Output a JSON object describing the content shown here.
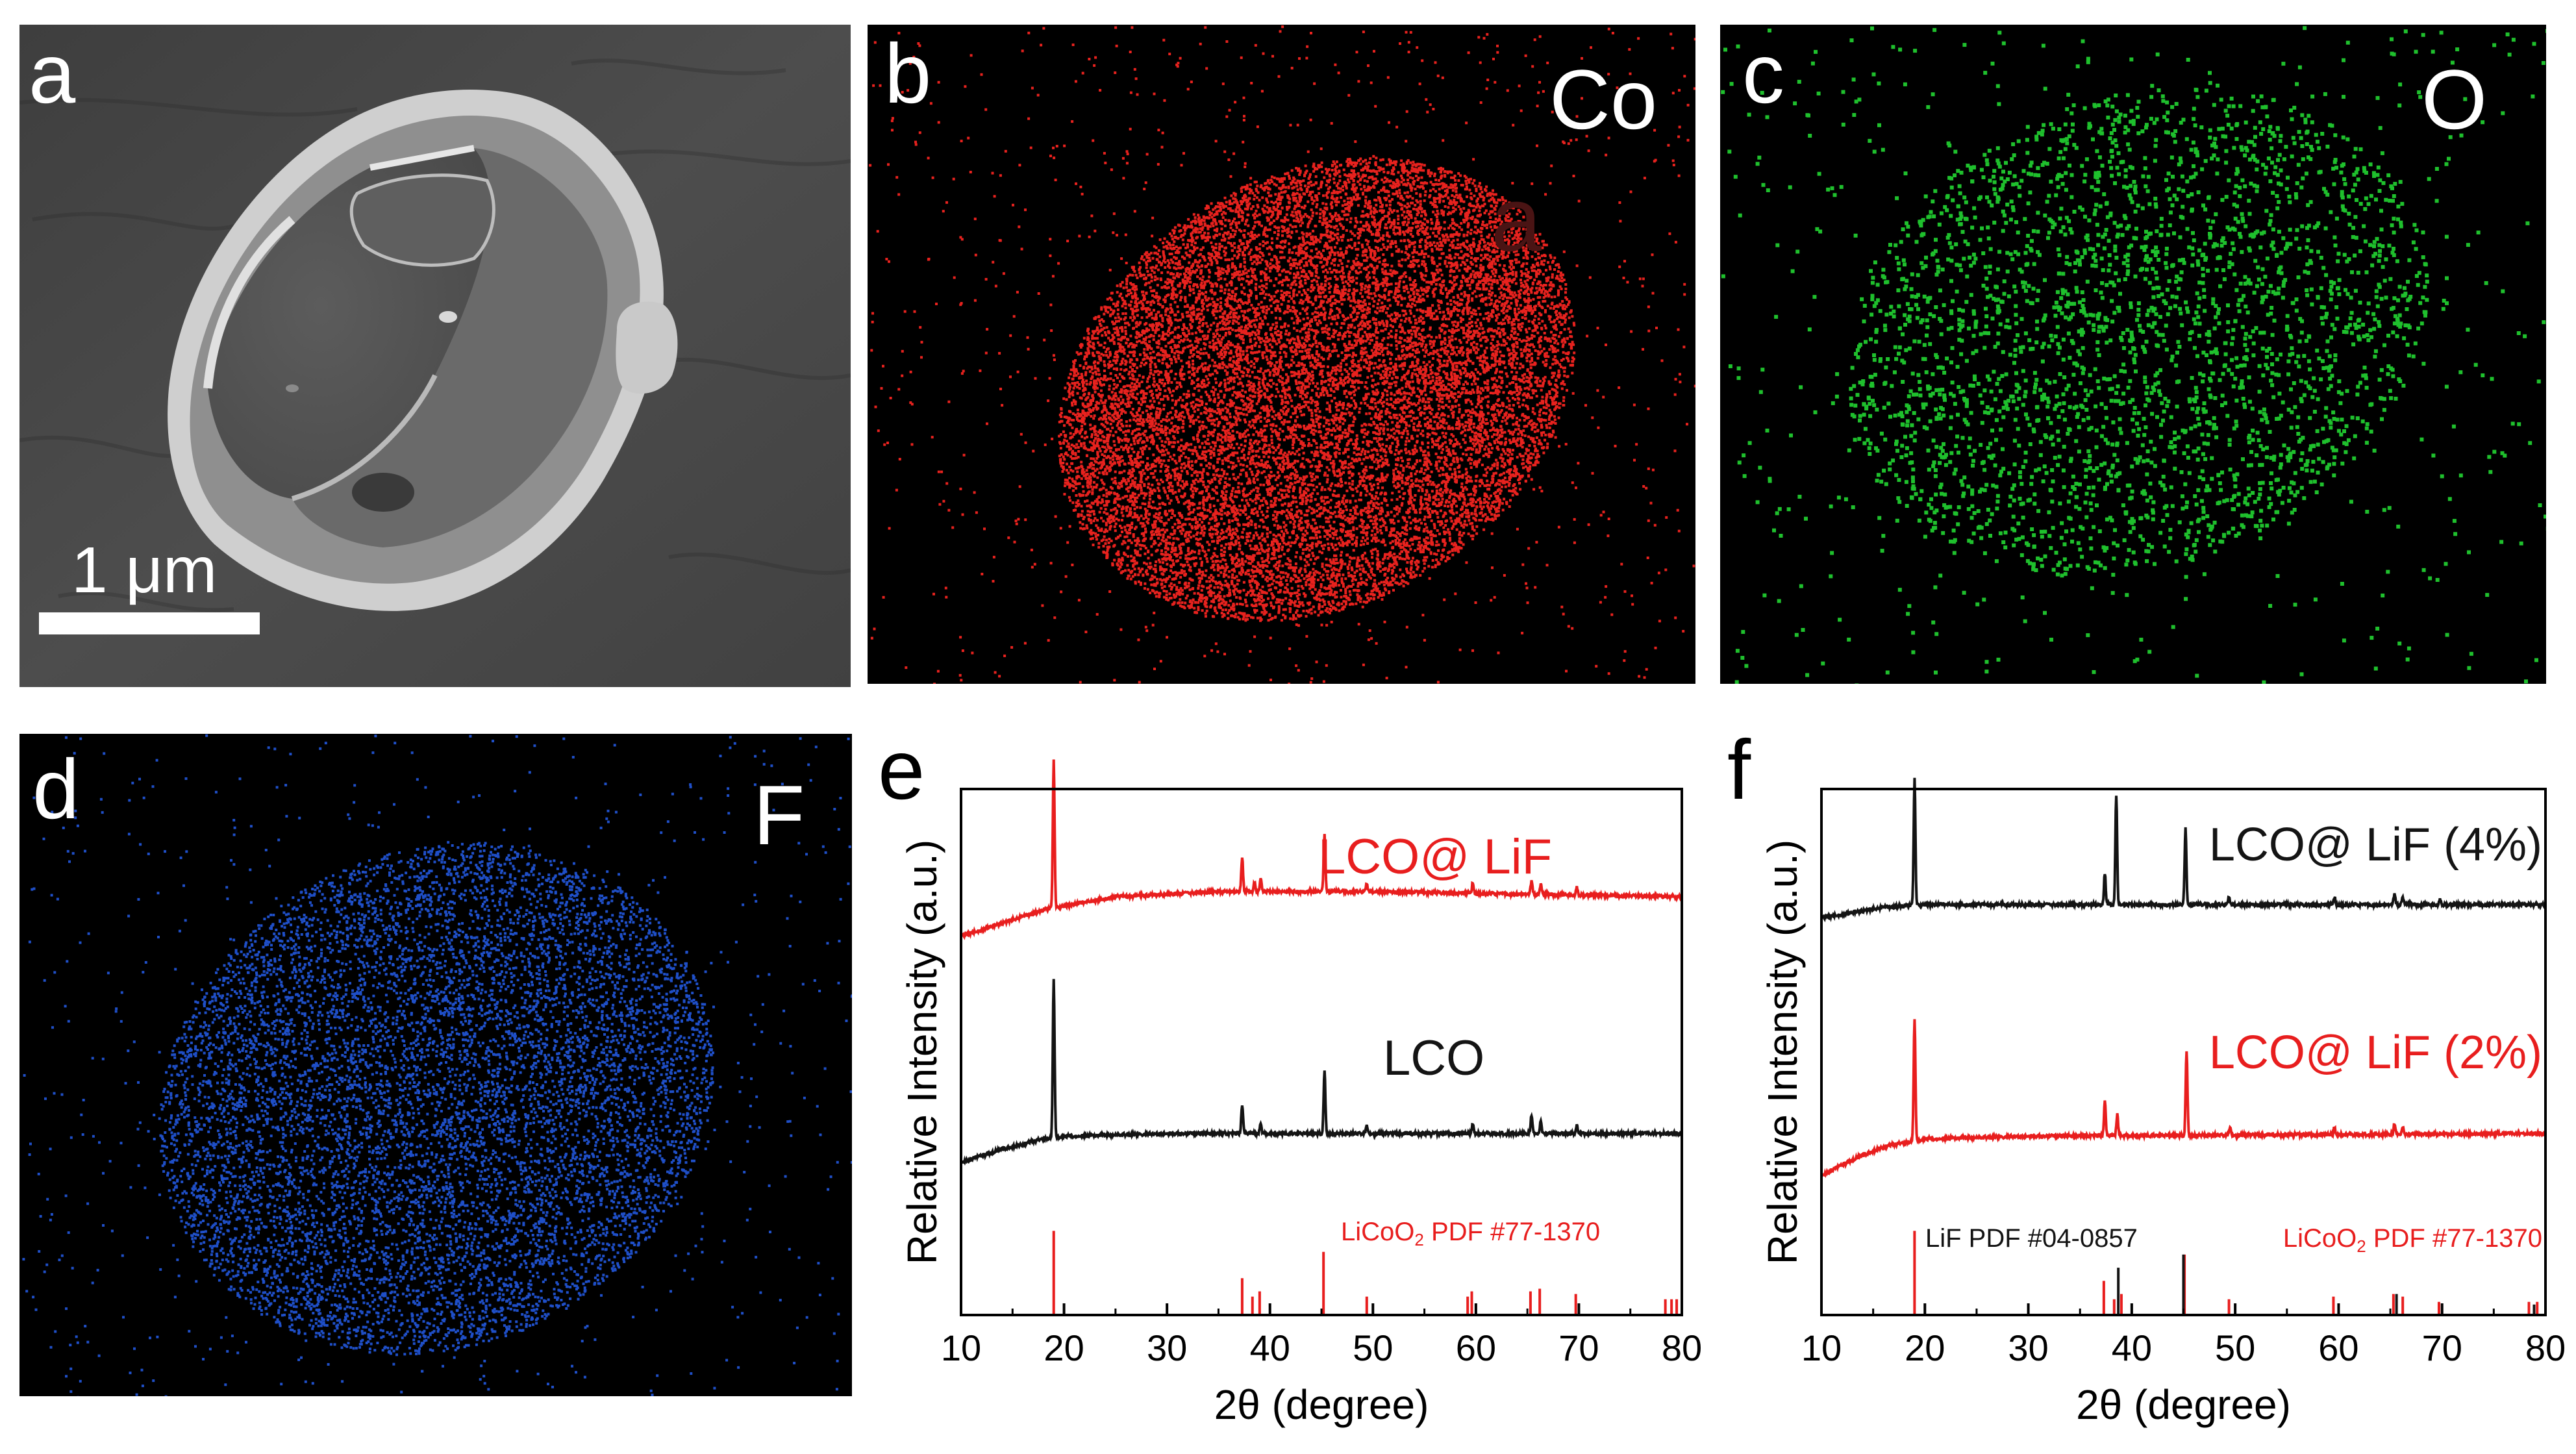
{
  "panels": {
    "a": {
      "letter": "a",
      "scalebar": "1 μm"
    },
    "b": {
      "letter": "b",
      "element": "Co",
      "dot_color": "#e8221e",
      "ghost_letter": "a"
    },
    "c": {
      "letter": "c",
      "element": "O",
      "dot_color": "#1fc02d"
    },
    "d": {
      "letter": "d",
      "element": "F",
      "dot_color": "#1f4fc8"
    }
  },
  "colors": {
    "black_series": "#141414",
    "red_series": "#e81e1e",
    "axis": "#000000"
  },
  "chart_data": [
    {
      "panel": "e",
      "type": "line",
      "xlabel": "2θ (degree)",
      "ylabel": "Relative Intensity (a.u.)",
      "xlim": [
        10,
        80
      ],
      "xticks": [
        10,
        20,
        30,
        40,
        50,
        60,
        70,
        80
      ],
      "series": [
        {
          "name": "LCO@ LiF",
          "color": "#e81e1e",
          "baseline": [
            [
              10,
              0.72
            ],
            [
              14,
              0.745
            ],
            [
              18,
              0.77
            ],
            [
              25,
              0.795
            ],
            [
              35,
              0.805
            ],
            [
              50,
              0.805
            ],
            [
              65,
              0.8
            ],
            [
              80,
              0.795
            ]
          ],
          "peaks": [
            [
              19.0,
              0.28
            ],
            [
              37.3,
              0.065
            ],
            [
              38.5,
              0.018
            ],
            [
              39.1,
              0.025
            ],
            [
              45.3,
              0.11
            ],
            [
              49.4,
              0.015
            ],
            [
              59.7,
              0.02
            ],
            [
              65.4,
              0.025
            ],
            [
              66.3,
              0.02
            ],
            [
              69.8,
              0.015
            ]
          ]
        },
        {
          "name": "LCO",
          "color": "#141414",
          "baseline": [
            [
              10,
              0.29
            ],
            [
              14,
              0.315
            ],
            [
              18,
              0.335
            ],
            [
              20,
              0.34
            ],
            [
              30,
              0.345
            ],
            [
              50,
              0.345
            ],
            [
              80,
              0.345
            ]
          ],
          "peaks": [
            [
              19.0,
              0.3
            ],
            [
              37.3,
              0.055
            ],
            [
              39.1,
              0.02
            ],
            [
              45.3,
              0.12
            ],
            [
              49.4,
              0.015
            ],
            [
              59.7,
              0.02
            ],
            [
              65.4,
              0.035
            ],
            [
              66.3,
              0.025
            ],
            [
              69.8,
              0.015
            ]
          ]
        }
      ],
      "reference": {
        "label_main": "LiCoO",
        "label_sub": "2",
        "label_rest": " PDF #77-1370",
        "color": "#e81e1e",
        "lines": [
          [
            19.0,
            0.16
          ],
          [
            37.3,
            0.07
          ],
          [
            38.3,
            0.035
          ],
          [
            39.0,
            0.045
          ],
          [
            45.2,
            0.12
          ],
          [
            49.4,
            0.035
          ],
          [
            59.2,
            0.035
          ],
          [
            59.6,
            0.045
          ],
          [
            65.3,
            0.045
          ],
          [
            66.2,
            0.05
          ],
          [
            69.7,
            0.04
          ],
          [
            78.4,
            0.03
          ],
          [
            79.0,
            0.03
          ],
          [
            79.5,
            0.03
          ]
        ]
      }
    },
    {
      "panel": "f",
      "type": "line",
      "xlabel": "2θ (degree)",
      "ylabel": "Relative Intensity (a.u.)",
      "xlim": [
        10,
        80
      ],
      "xticks": [
        10,
        20,
        30,
        40,
        50,
        60,
        70,
        80
      ],
      "series": [
        {
          "name": "LCO@ LiF (4%)",
          "color": "#141414",
          "baseline": [
            [
              10,
              0.755
            ],
            [
              13,
              0.765
            ],
            [
              16,
              0.775
            ],
            [
              20,
              0.78
            ],
            [
              40,
              0.78
            ],
            [
              80,
              0.78
            ]
          ],
          "peaks": [
            [
              19.0,
              0.24
            ],
            [
              37.4,
              0.06
            ],
            [
              38.5,
              0.21
            ],
            [
              45.2,
              0.145
            ],
            [
              49.4,
              0.015
            ],
            [
              59.6,
              0.015
            ],
            [
              65.4,
              0.02
            ],
            [
              66.2,
              0.015
            ],
            [
              69.8,
              0.01
            ]
          ]
        },
        {
          "name": "LCO@ LiF (2%)",
          "color": "#e81e1e",
          "baseline": [
            [
              10,
              0.265
            ],
            [
              13,
              0.295
            ],
            [
              16,
              0.32
            ],
            [
              20,
              0.335
            ],
            [
              30,
              0.34
            ],
            [
              80,
              0.345
            ]
          ],
          "peaks": [
            [
              19.0,
              0.23
            ],
            [
              37.4,
              0.065
            ],
            [
              38.6,
              0.04
            ],
            [
              45.3,
              0.16
            ],
            [
              49.5,
              0.015
            ],
            [
              59.6,
              0.015
            ],
            [
              65.4,
              0.02
            ],
            [
              66.2,
              0.015
            ]
          ]
        }
      ],
      "reference": {
        "label_main": "LiCoO",
        "label_sub": "2",
        "label_rest": " PDF #77-1370",
        "color": "#e81e1e",
        "lines": [
          [
            19.0,
            0.16
          ],
          [
            37.3,
            0.065
          ],
          [
            38.3,
            0.03
          ],
          [
            39.0,
            0.04
          ],
          [
            45.1,
            0.115
          ],
          [
            49.4,
            0.03
          ],
          [
            59.5,
            0.035
          ],
          [
            65.3,
            0.04
          ],
          [
            66.2,
            0.035
          ],
          [
            69.7,
            0.025
          ],
          [
            78.4,
            0.025
          ],
          [
            79.2,
            0.025
          ]
        ]
      },
      "reference2": {
        "label": "LiF PDF #04-0857",
        "color": "#141414",
        "lines": [
          [
            38.7,
            0.09
          ],
          [
            45.0,
            0.115
          ],
          [
            65.6,
            0.04
          ],
          [
            78.9,
            0.02
          ]
        ]
      }
    }
  ]
}
